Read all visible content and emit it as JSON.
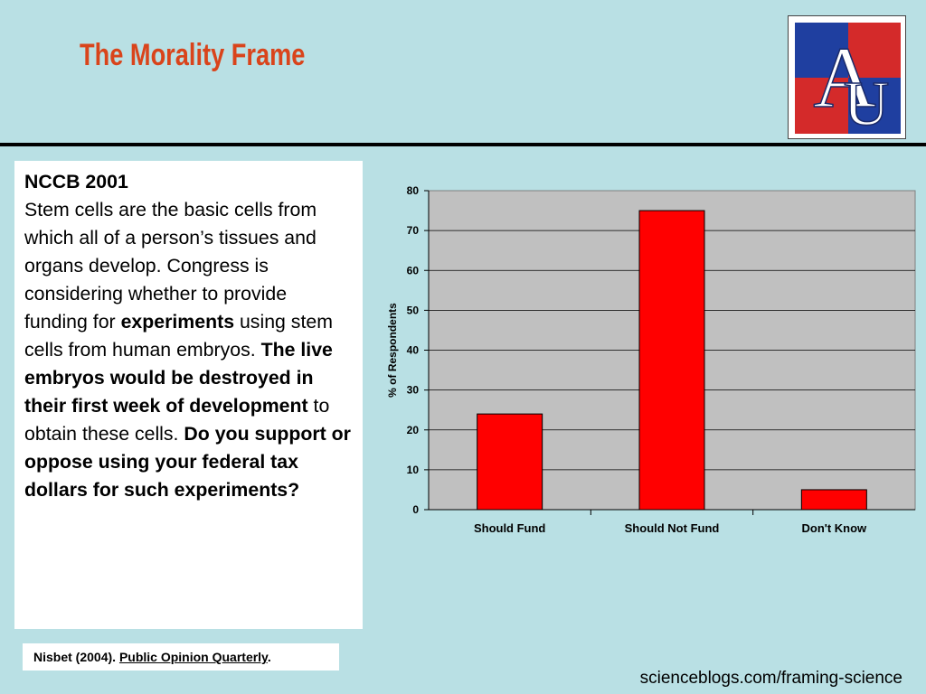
{
  "slide": {
    "title": "The Morality Frame",
    "logo_text": "AU",
    "question": {
      "heading": "NCCB 2001",
      "segments": [
        {
          "text": "Stem cells are the basic cells from which all of a person’s tissues and organs develop. Congress is considering whether to provide funding for ",
          "bold": false
        },
        {
          "text": "experiments",
          "bold": true
        },
        {
          "text": " using stem cells from human embryos.  ",
          "bold": false
        },
        {
          "text": "The live embryos would be destroyed in their first week of development",
          "bold": true
        },
        {
          "text": " to obtain these cells.  ",
          "bold": false
        },
        {
          "text": "Do you support or oppose using your federal tax dollars for such experiments?",
          "bold": true
        }
      ]
    },
    "citation": {
      "prefix": "Nisbet (2004). ",
      "journal": "Public Opinion Quarterly",
      "suffix": "."
    },
    "source": "scienceblogs.com/framing-science"
  },
  "colors": {
    "title": "#d9441b",
    "background": "#b9e0e4",
    "bar": "#ff0000",
    "plot_area": "#c0c0c0",
    "logo_blue": "#1f3fa0",
    "logo_red": "#d42a2a"
  },
  "chart_data": {
    "type": "bar",
    "categories": [
      "Should Fund",
      "Should Not Fund",
      "Don't Know"
    ],
    "values": [
      24,
      75,
      5
    ],
    "ylabel": "% of Respondents",
    "xlabel": "",
    "ylim": [
      0,
      80
    ],
    "yticks": [
      0,
      10,
      20,
      30,
      40,
      50,
      60,
      70,
      80
    ],
    "grid": true,
    "legend": "none"
  }
}
